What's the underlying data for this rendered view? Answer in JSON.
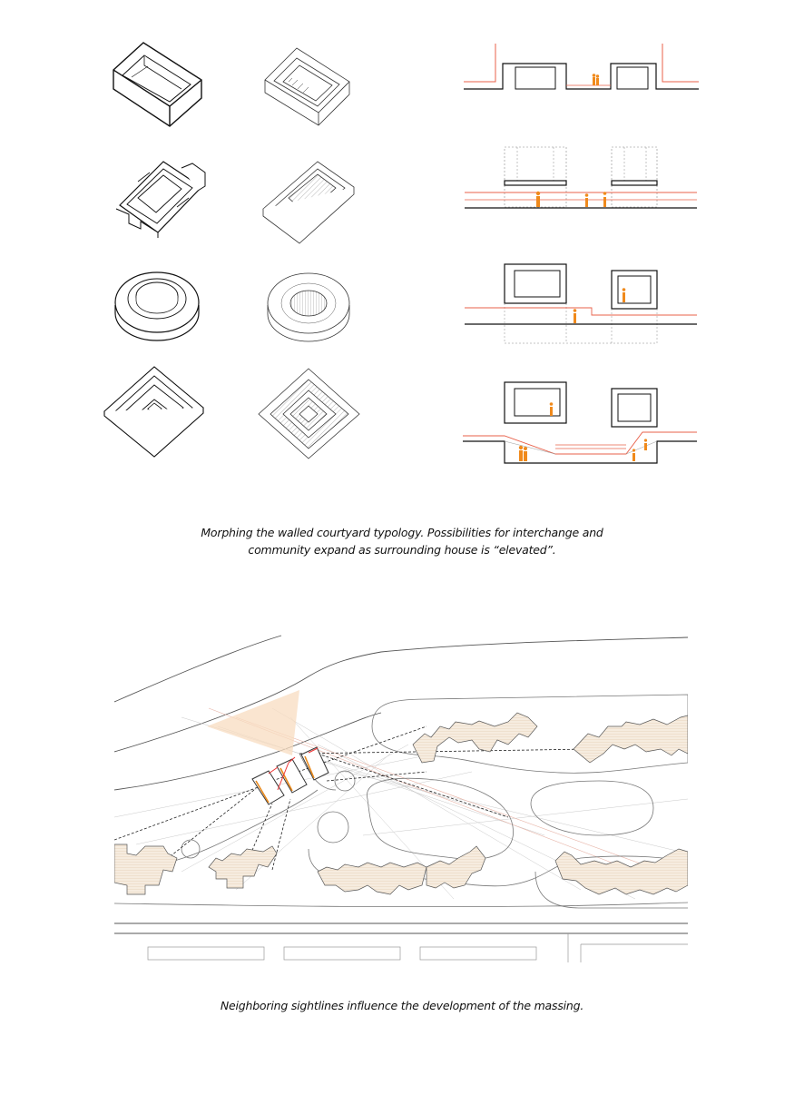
{
  "top_figure": {
    "caption_line1": "Morphing the walled courtyard typology. Possibilities for interchange and",
    "caption_line2": "community expand as surrounding house is “elevated”.",
    "rows": [
      "walled-courtyard",
      "cross-courtyard",
      "ring-courtyard",
      "stepped-courtyard"
    ],
    "accent_color": "#f08a1c",
    "line_color": "#e8604a"
  },
  "site_plan": {
    "caption": "Neighboring sightlines influence the development of the massing.",
    "building_fill": "#f6ecdf",
    "view_cone_color": "#f8dcc0"
  }
}
